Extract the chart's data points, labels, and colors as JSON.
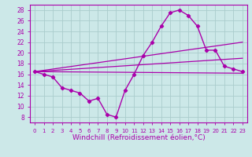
{
  "xlabel": "Windchill (Refroidissement éolien,°C)",
  "x": [
    0,
    1,
    2,
    3,
    4,
    5,
    6,
    7,
    8,
    9,
    10,
    11,
    12,
    13,
    14,
    15,
    16,
    17,
    18,
    19,
    20,
    21,
    22,
    23
  ],
  "wavy_line": [
    16.5,
    16.0,
    15.5,
    13.5,
    13.0,
    12.5,
    11.0,
    11.5,
    8.5,
    8.0,
    13.0,
    16.0,
    19.5,
    22.0,
    25.0,
    27.5,
    28.0,
    27.0,
    25.0,
    20.5,
    20.5,
    17.5,
    17.0,
    16.5
  ],
  "straight_lines": [
    {
      "x": [
        0,
        23
      ],
      "y": [
        16.5,
        16.2
      ]
    },
    {
      "x": [
        0,
        23
      ],
      "y": [
        16.5,
        22.0
      ]
    },
    {
      "x": [
        0,
        23
      ],
      "y": [
        16.5,
        19.0
      ]
    }
  ],
  "color": "#aa00aa",
  "bg_color": "#cce8e8",
  "grid_color": "#aacccc",
  "ylim": [
    7,
    29
  ],
  "yticks": [
    8,
    10,
    12,
    14,
    16,
    18,
    20,
    22,
    24,
    26,
    28
  ],
  "xticks": [
    0,
    1,
    2,
    3,
    4,
    5,
    6,
    7,
    8,
    9,
    10,
    11,
    12,
    13,
    14,
    15,
    16,
    17,
    18,
    19,
    20,
    21,
    22,
    23
  ],
  "xlabel_fontsize": 6.5,
  "xtick_fontsize": 5.0,
  "ytick_fontsize": 5.5
}
